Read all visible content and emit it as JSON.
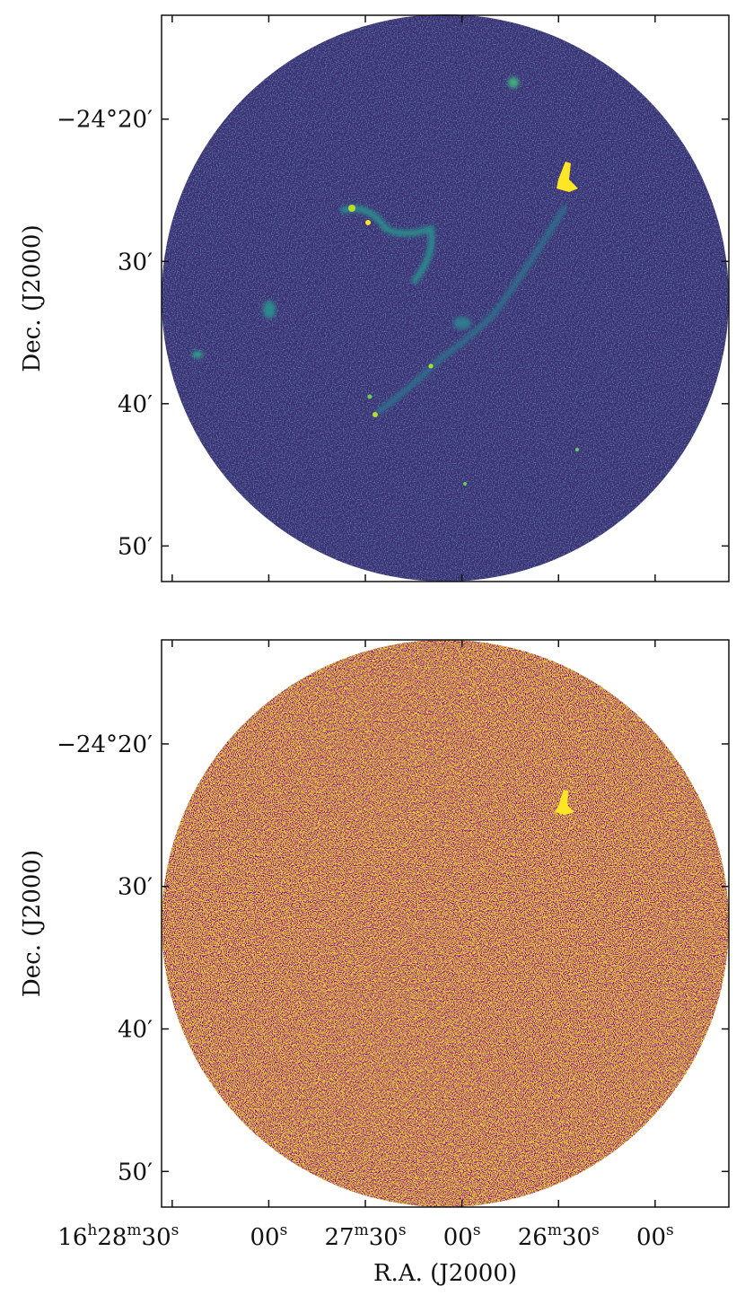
{
  "chart_data": [
    {
      "type": "image",
      "ylabel": "Dec. (J2000)",
      "xlim": [
        1713.3,
        1537.1
      ],
      "xticks": [
        1710,
        1680,
        1650,
        1620,
        1590,
        1560
      ],
      "ylim": [
        -1492.5,
        -1452.7
      ],
      "yticks": [
        {
          "value": -1460,
          "label": "−24°20′"
        },
        {
          "value": -1470,
          "label": "30′"
        },
        {
          "value": -1480,
          "label": "40′"
        },
        {
          "value": -1490,
          "label": "50′"
        }
      ]
    },
    {
      "type": "image",
      "ylabel": "Dec. (J2000)",
      "xlabel": "R.A. (J2000)",
      "xlim": [
        1713.3,
        1537.1
      ],
      "xticks": [
        {
          "value": 1710,
          "label": "16h28m30s"
        },
        {
          "value": 1680,
          "label": "00s"
        },
        {
          "value": 1650,
          "label": "27m30s"
        },
        {
          "value": 1620,
          "label": "00s"
        },
        {
          "value": 1590,
          "label": "26m30s"
        },
        {
          "value": 1560,
          "label": "00s"
        }
      ],
      "ylim": [
        -1492.5,
        -1452.7
      ],
      "yticks": [
        {
          "value": -1460,
          "label": "−24°20′"
        },
        {
          "value": -1470,
          "label": "30′"
        },
        {
          "value": -1480,
          "label": "40′"
        },
        {
          "value": -1490,
          "label": "50′"
        }
      ]
    }
  ]
}
